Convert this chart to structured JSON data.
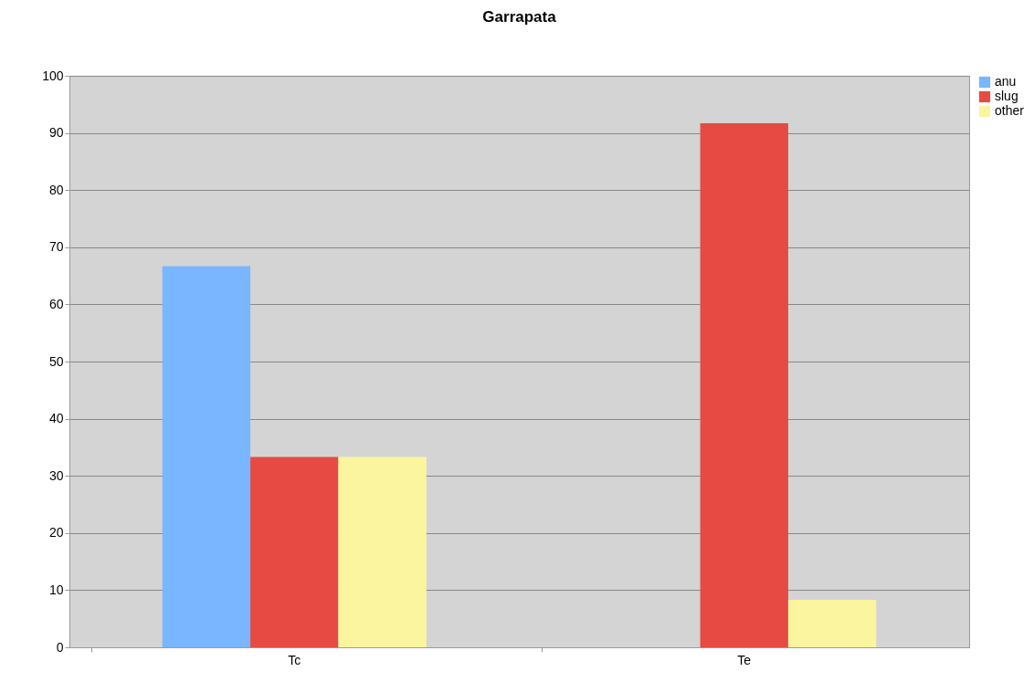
{
  "chart_data": {
    "type": "bar",
    "title": "Garrapata",
    "categories": [
      "Tc",
      "Te"
    ],
    "series": [
      {
        "name": "anu",
        "color": "#7ab6ff",
        "values": [
          66.7,
          0
        ]
      },
      {
        "name": "slug",
        "color": "#e64a43",
        "values": [
          33.3,
          91.7
        ]
      },
      {
        "name": "other",
        "color": "#fcf59f",
        "values": [
          33.3,
          8.3
        ]
      }
    ],
    "ylim": [
      0,
      100
    ],
    "yticks": [
      0,
      10,
      20,
      30,
      40,
      50,
      60,
      70,
      80,
      90,
      100
    ],
    "grid": "y",
    "legend": "right"
  }
}
